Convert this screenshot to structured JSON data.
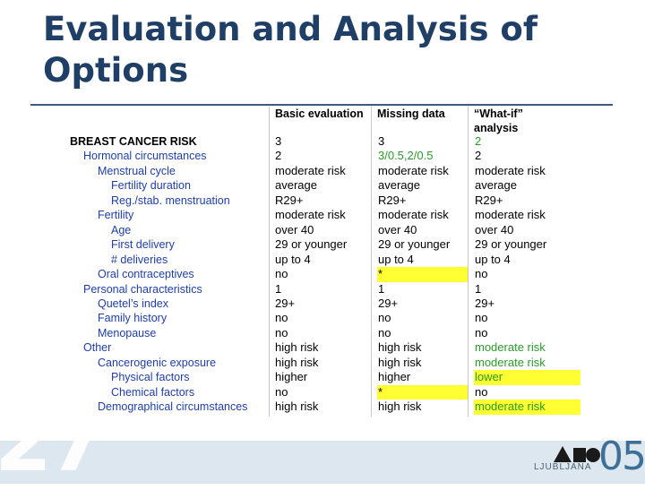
{
  "slide": {
    "title": "Evaluation and Analysis of Options",
    "number": "27"
  },
  "table": {
    "headers": {
      "basic": "Basic evaluation",
      "missing": "Missing data",
      "whatif": "“What-if” analysis"
    },
    "rows": [
      {
        "label": "BREAST CANCER RISK",
        "level": 0,
        "basic": "3",
        "missing": "3",
        "whatif": "2",
        "whatif_changed": true
      },
      {
        "label": "Hormonal circumstances",
        "level": 1,
        "basic": "2",
        "missing": "3/0.5,2/0.5",
        "missing_changed": true,
        "whatif": "2"
      },
      {
        "label": "Menstrual cycle",
        "level": 2,
        "basic": "moderate risk",
        "missing": "moderate risk",
        "whatif": "moderate risk"
      },
      {
        "label": "Fertility duration",
        "level": 3,
        "basic": "average",
        "missing": "average",
        "whatif": "average"
      },
      {
        "label": "Reg./stab. menstruation",
        "level": 3,
        "basic": "R29+",
        "missing": "R29+",
        "whatif": "R29+"
      },
      {
        "label": "Fertility",
        "level": 2,
        "basic": "moderate risk",
        "missing": "moderate risk",
        "whatif": "moderate risk"
      },
      {
        "label": "Age",
        "level": 3,
        "basic": "over 40",
        "missing": "over 40",
        "whatif": "over 40"
      },
      {
        "label": "First delivery",
        "level": 3,
        "basic": "29 or younger",
        "missing": "29 or younger",
        "whatif": "29 or younger"
      },
      {
        "label": "# deliveries",
        "level": 3,
        "basic": "up to 4",
        "missing": "up to 4",
        "whatif": "up to 4"
      },
      {
        "label": "Oral contraceptives",
        "level": 2,
        "basic": "no",
        "missing": "*",
        "missing_highlight": true,
        "whatif": "no"
      },
      {
        "label": "Personal characteristics",
        "level": 1,
        "basic": "1",
        "missing": "1",
        "whatif": "1"
      },
      {
        "label": "Quetel’s index",
        "level": 2,
        "basic": "29+",
        "missing": "29+",
        "whatif": "29+"
      },
      {
        "label": "Family history",
        "level": 2,
        "basic": "no",
        "missing": "no",
        "whatif": "no"
      },
      {
        "label": "Menopause",
        "level": 2,
        "basic": "no",
        "missing": "no",
        "whatif": "no"
      },
      {
        "label": "Other",
        "level": 1,
        "basic": "high risk",
        "missing": "high risk",
        "whatif": "moderate risk",
        "whatif_changed": true
      },
      {
        "label": "Cancerogenic exposure",
        "level": 2,
        "basic": "high risk",
        "missing": "high risk",
        "whatif": "moderate risk",
        "whatif_changed": true
      },
      {
        "label": "Physical factors",
        "level": 3,
        "basic": "higher",
        "missing": "higher",
        "whatif": "lower",
        "whatif_changed": true,
        "whatif_highlight": true
      },
      {
        "label": "Chemical factors",
        "level": 3,
        "basic": "no",
        "missing": "*",
        "missing_highlight": true,
        "whatif": "no"
      },
      {
        "label": "Demographical circumstances",
        "level": 2,
        "basic": "high risk",
        "missing": "high risk",
        "whatif": "moderate risk",
        "whatif_changed": true,
        "whatif_highlight": true
      }
    ]
  },
  "logo": {
    "city": "LJUBLJANA",
    "year": "05"
  },
  "colors": {
    "title": "#1f3f66",
    "label": "#1f3ea8",
    "changed": "#2a9a2a",
    "highlight": "#ffff33",
    "footer": "#dde7f0"
  }
}
